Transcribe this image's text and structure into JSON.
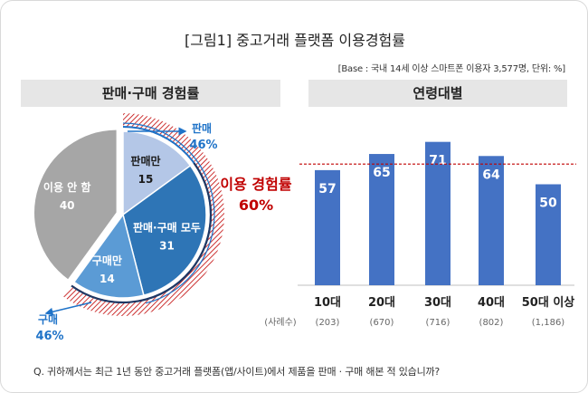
{
  "title": "[그림1] 중고거래 플랫폼 이용경험률",
  "base_note": "[Base : 국내 14세 이상 스마트폰 이용자 3,577명, 단위: %]",
  "question": "Q. 귀하께서는 최근 1년 동안 중고거래 플랫폼(앱/사이트)에서 제품을 판매 · 구매 해본 적 있습니까?",
  "colors": {
    "gray": "#a6a6a6",
    "light_blue": "#b4c7e7",
    "mid_blue": "#2e75b6",
    "sky_blue": "#5b9bd5",
    "bar_blue": "#4472c4",
    "highlight_red": "#c00000",
    "callout_blue": "#1f73c8"
  },
  "chart_data": [
    {
      "type": "pie",
      "title": "판매·구매 경험률",
      "slices": [
        {
          "label": "판매만",
          "value": 15
        },
        {
          "label": "판매·구매 모두",
          "value": 31
        },
        {
          "label": "구매만",
          "value": 14
        },
        {
          "label": "이용 안 함",
          "value": 40
        }
      ],
      "callouts": {
        "sell_label": "판매",
        "sell_value": "46%",
        "buy_label": "구매",
        "buy_value": "46%",
        "usage_label": "이용 경험률",
        "usage_value": "60%"
      }
    },
    {
      "type": "bar",
      "title": "연령대별",
      "categories": [
        "10대",
        "20대",
        "30대",
        "40대",
        "50대 이상"
      ],
      "values": [
        57,
        65,
        71,
        64,
        50
      ],
      "sample_label": "(사례수)",
      "sample_sizes": [
        "(203)",
        "(670)",
        "(716)",
        "(802)",
        "(1,186)"
      ],
      "reference_line": 60,
      "ylim": [
        0,
        80
      ]
    }
  ]
}
